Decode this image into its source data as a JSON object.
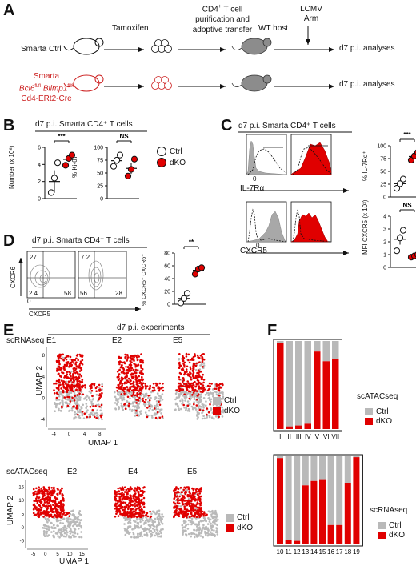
{
  "colors": {
    "ctrl": "#b9b9b9",
    "dko": "#e00000",
    "red_text": "#cc1f1f",
    "mouse_gray": "#8c8c8c"
  },
  "panelA": {
    "letter": "A",
    "steps": [
      "Tamoxifen",
      "CD4+ T cell purification and adoptive transfer",
      "WT host",
      "LCMV Arm"
    ],
    "step_lines": {
      "cd4": "CD4",
      "cd4_sup": "+",
      "cd4_rest": " T cell",
      "purif": "purification and",
      "adoptive": "adoptive transfer",
      "wt": "WT host",
      "lcmv1": "LCMV",
      "lcmv2": "Arm"
    },
    "row1_label": "Smarta Ctrl",
    "row2_label": {
      "l1": "Smarta",
      "l2a": "Bcl6",
      "l2b": "fl/fl",
      "l2c": " Blimp1",
      "l2d": "fl/fl",
      "l3": "Cd4-ERt2-Cre"
    },
    "readout": "d7 p.i. analyses"
  },
  "panelB": {
    "letter": "B",
    "title": "d7 p.i.  Smarta CD4⁺ T cells",
    "left": {
      "sig": "***",
      "ylabel": "Number (x 10⁶)",
      "yticks": [
        "0",
        "2",
        "4",
        "6"
      ]
    },
    "right": {
      "sig": "NS",
      "ylabel": "% Ki-67⁺",
      "yticks": [
        "0",
        "25",
        "50",
        "75",
        "100"
      ]
    },
    "legend": [
      "Ctrl",
      "dKO"
    ]
  },
  "panelC": {
    "letter": "C",
    "title": "d7 p.i.  Smarta CD4⁺ T cells",
    "hist1_axis": "IL-7Rα",
    "hist2_axis": "CXCR5",
    "zero": "0",
    "plot1": {
      "sig": "***",
      "ylabel": "% IL-7Rα⁺",
      "yticks": [
        "0",
        "25",
        "50",
        "75",
        "100"
      ]
    },
    "plot2": {
      "sig": "NS",
      "ylabel": "MFI CXCR5 (x 10³)",
      "yticks": [
        "0",
        "1",
        "2",
        "3",
        "4"
      ]
    }
  },
  "panelD": {
    "letter": "D",
    "title": "d7 p.i.  Smarta CD4⁺ T cells",
    "ctrl_quads": {
      "ul": "27",
      "ll": "2.4",
      "lr": "58"
    },
    "dko_quads": {
      "ul": "7.2",
      "ll": "56",
      "lr": "28"
    },
    "y_axis": "CXCR6",
    "x_axis": "CXCR5",
    "zero": "0",
    "plot": {
      "sig": "**",
      "ylabel": "% CXCR5⁻ CXCR6⁻",
      "yticks": [
        "0",
        "20",
        "40",
        "60",
        "80"
      ]
    }
  },
  "panelE": {
    "letter": "E",
    "title": "d7 p.i. experiments",
    "rna_label": "scRNAseq",
    "atac_label": "scATACseq",
    "rna_exps": [
      "E1",
      "E2",
      "E5"
    ],
    "atac_exps": [
      "E2",
      "E4",
      "E5"
    ],
    "umap1": "UMAP 1",
    "umap2": "UMAP 2",
    "rna_xticks": [
      "-4",
      "0",
      "4",
      "8"
    ],
    "rna_yticks": [
      "-4",
      "0",
      "4",
      "8"
    ],
    "atac_xticks": [
      "-5",
      "0",
      "5",
      "10",
      "15"
    ],
    "atac_yticks": [
      "-5",
      "0",
      "5",
      "10",
      "15"
    ],
    "legend": [
      "Ctrl",
      "dKO"
    ]
  },
  "panelF": {
    "letter": "F",
    "atac_label": "scATACseq",
    "rna_label": "scRNAseq",
    "legend": [
      "Ctrl",
      "dKO"
    ]
  },
  "chart_data": [
    {
      "type": "scatter",
      "title": "d7 p.i. Smarta CD4+ T cells",
      "ylabel": "Number (x 10^6)",
      "ylim": [
        0,
        6
      ],
      "series": [
        {
          "name": "Ctrl",
          "values": [
            0.7,
            2.4,
            4.2
          ],
          "mean": 2.0
        },
        {
          "name": "dKO",
          "values": [
            3.9,
            4.7,
            5.1
          ],
          "mean": 4.6
        }
      ]
    },
    {
      "type": "scatter",
      "ylabel": "% Ki-67+",
      "ylim": [
        0,
        100
      ],
      "series": [
        {
          "name": "Ctrl",
          "values": [
            63,
            75,
            85
          ],
          "mean": 74
        },
        {
          "name": "dKO",
          "values": [
            44,
            57,
            77
          ],
          "mean": 59
        }
      ]
    },
    {
      "type": "scatter",
      "ylabel": "% IL-7Rα+",
      "ylim": [
        0,
        100
      ],
      "series": [
        {
          "name": "Ctrl",
          "values": [
            17,
            26,
            35
          ],
          "mean": 26
        },
        {
          "name": "dKO",
          "values": [
            72,
            80,
            87
          ],
          "mean": 79
        }
      ]
    },
    {
      "type": "scatter",
      "ylabel": "MFI CXCR5 (x 10^3)",
      "ylim": [
        0,
        4
      ],
      "series": [
        {
          "name": "Ctrl",
          "values": [
            1.3,
            2.3,
            2.9
          ],
          "mean": 2.2
        },
        {
          "name": "dKO",
          "values": [
            0.8,
            0.9,
            1.0
          ],
          "mean": 0.9
        }
      ]
    },
    {
      "type": "scatter",
      "ylabel": "% CXCR5- CXCR6-",
      "ylim": [
        0,
        80
      ],
      "series": [
        {
          "name": "Ctrl",
          "values": [
            2,
            9,
            17
          ],
          "mean": 9
        },
        {
          "name": "dKO",
          "values": [
            47,
            55,
            57
          ],
          "mean": 53
        }
      ]
    },
    {
      "type": "bar",
      "ylabel": "",
      "categories": [
        "I",
        "II",
        "III",
        "IV",
        "V",
        "VI",
        "VII"
      ],
      "series": [
        {
          "name": "dKO",
          "values": [
            0.98,
            0.03,
            0.04,
            0.06,
            0.88,
            0.77,
            0.8
          ]
        },
        {
          "name": "Ctrl",
          "values": [
            0.02,
            0.97,
            0.96,
            0.94,
            0.12,
            0.23,
            0.2
          ]
        }
      ]
    },
    {
      "type": "bar",
      "categories": [
        "10",
        "11",
        "12",
        "13",
        "14",
        "15",
        "16",
        "17",
        "18",
        "19"
      ],
      "series": [
        {
          "name": "dKO",
          "values": [
            0.98,
            0.05,
            0.04,
            0.67,
            0.72,
            0.74,
            0.22,
            0.22,
            0.7,
            0.99
          ]
        },
        {
          "name": "Ctrl",
          "values": [
            0.02,
            0.95,
            0.96,
            0.33,
            0.28,
            0.26,
            0.78,
            0.78,
            0.3,
            0.01
          ]
        }
      ]
    }
  ]
}
